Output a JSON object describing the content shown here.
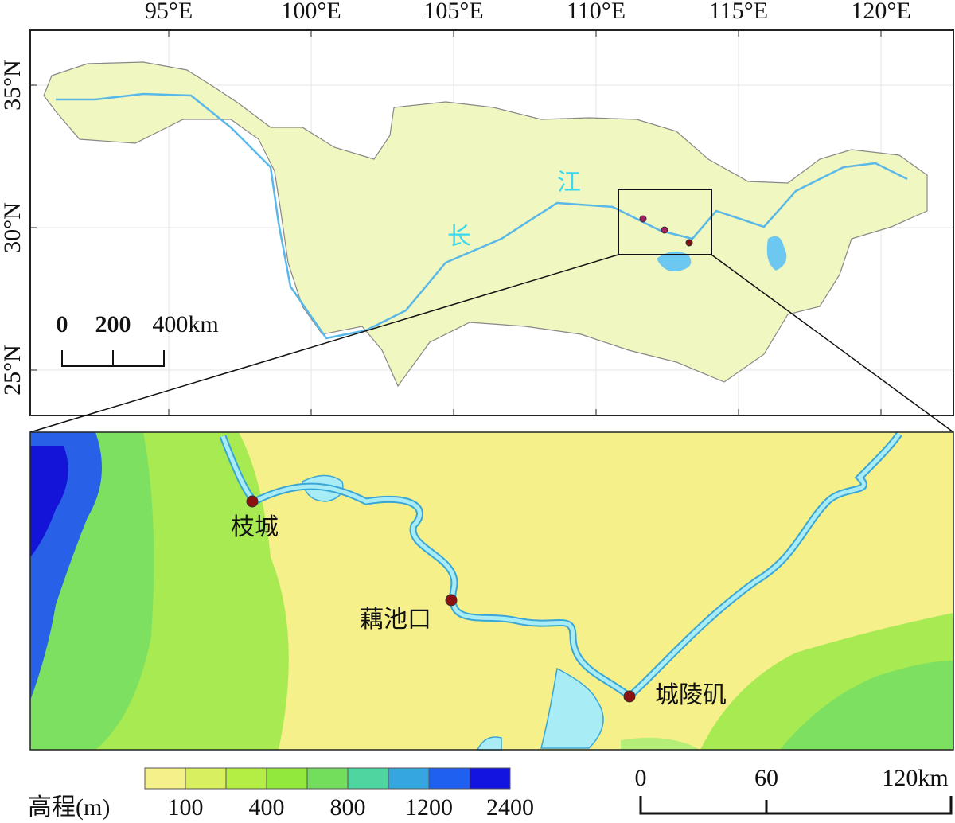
{
  "map": {
    "graticule": {
      "lon": [
        {
          "value": 95,
          "label": "95°E"
        },
        {
          "value": 100,
          "label": "100°E"
        },
        {
          "value": 105,
          "label": "105°E"
        },
        {
          "value": 110,
          "label": "110°E"
        },
        {
          "value": 115,
          "label": "115°E"
        },
        {
          "value": 120,
          "label": "120°E"
        }
      ],
      "lat": [
        {
          "value": 35,
          "label": "35°N"
        },
        {
          "value": 30,
          "label": "30°N"
        },
        {
          "value": 25,
          "label": "25°N"
        }
      ]
    },
    "scale_top": {
      "labels": [
        "0",
        "200",
        "400km"
      ]
    },
    "river_label": [
      "长",
      "江"
    ],
    "stations": [
      "枝城",
      "藕池口",
      "城陵矶"
    ],
    "legend": {
      "title": "高程(m)",
      "colors": [
        "#f5f08a",
        "#d8f060",
        "#b4ee44",
        "#92e83c",
        "#72de5c",
        "#4fd6a0",
        "#35a6e0",
        "#2060f0",
        "#1414e0"
      ],
      "ticks": [
        100,
        400,
        800,
        1200,
        2400
      ]
    },
    "scale_bottom": {
      "labels": [
        "0",
        "60",
        "120km"
      ]
    }
  }
}
